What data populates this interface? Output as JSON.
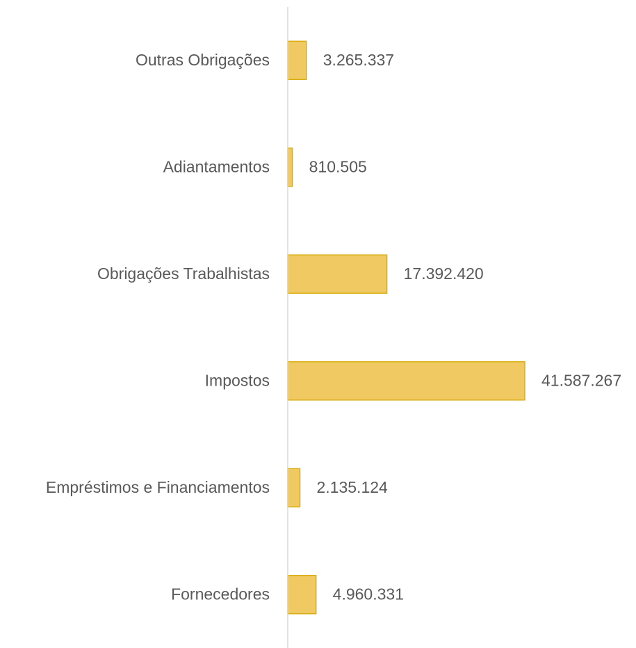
{
  "chart_data": {
    "type": "hbar",
    "categories": [
      "Outras Obrigações",
      "Adiantamentos",
      "Obrigações Trabalhistas",
      "Impostos",
      "Empréstimos e Financiamentos",
      "Fornecedores"
    ],
    "values": [
      3265337,
      810505,
      17392420,
      41587267,
      2135124,
      4960331
    ],
    "value_labels": [
      "3.265.337",
      "810.505",
      "17.392.420",
      "41.587.267",
      "2.135.124",
      "4.960.331"
    ],
    "color": "#f0c963",
    "edge_color": "#d9ae12",
    "xlim": [
      0,
      50000000
    ]
  }
}
